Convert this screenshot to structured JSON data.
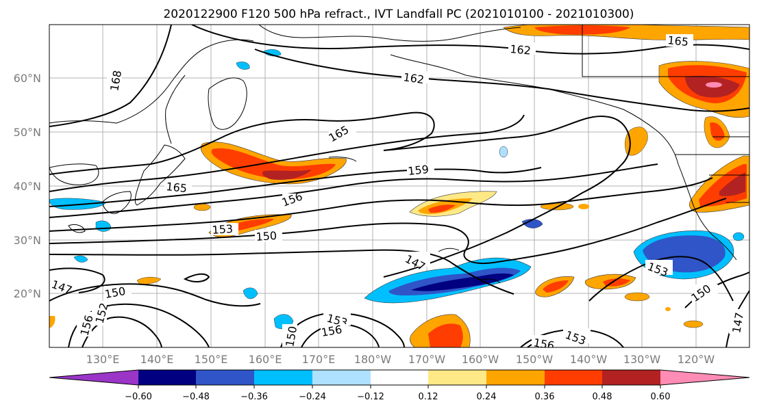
{
  "map": {
    "title": "2020122900 F120 500 hPa refract., IVT Landfall PC (2021010100 - 2021010300)",
    "lat_labels": [
      "20°N",
      "30°N",
      "40°N",
      "50°N",
      "60°N"
    ],
    "lon_labels": [
      "130°E",
      "140°E",
      "150°E",
      "160°E",
      "170°E",
      "180°W",
      "170°W",
      "160°W",
      "150°W",
      "140°W",
      "130°W",
      "120°W"
    ],
    "contour_labels": [
      "168",
      "162",
      "162",
      "165",
      "165",
      "159",
      "165",
      "156",
      "153",
      "150",
      "147",
      "147",
      "150",
      "153",
      "150",
      "147",
      "153",
      "156",
      "150",
      "156",
      "153",
      "152",
      "156"
    ]
  },
  "colorbar": {
    "tick_labels": [
      "−0.60",
      "−0.48",
      "−0.36",
      "−0.24",
      "−0.12",
      "0.12",
      "0.24",
      "0.36",
      "0.48",
      "0.60"
    ],
    "colors": [
      "#9a35c8",
      "#000080",
      "#2f55c8",
      "#00bfff",
      "#aee0ff",
      "#ffffff",
      "#ffe986",
      "#ffa500",
      "#ff3d00",
      "#b22222",
      "#ff8cb4"
    ]
  }
}
